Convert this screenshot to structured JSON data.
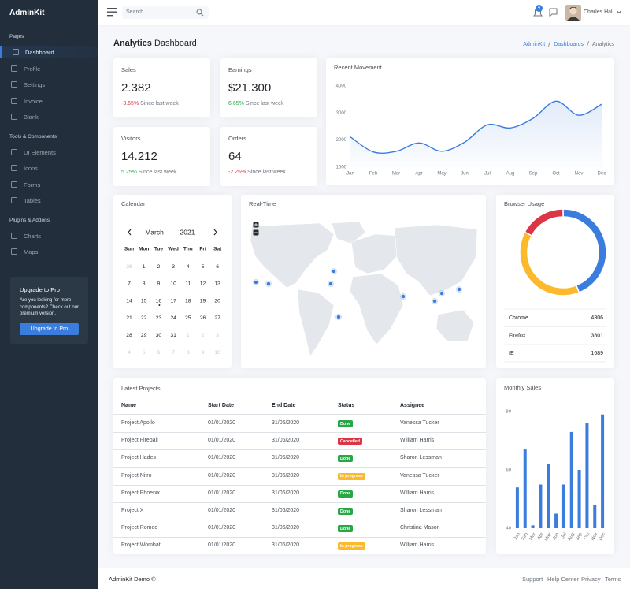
{
  "sidebar": {
    "brand": "AdminKit",
    "sections": [
      {
        "title": "Pages",
        "items": [
          "Dashboard",
          "Profile",
          "Settings",
          "Invoice",
          "Blank"
        ]
      },
      {
        "title": "Tools & Components",
        "items": [
          "UI Elements",
          "Icons",
          "Forms",
          "Tables"
        ]
      },
      {
        "title": "Plugins & Addons",
        "items": [
          "Charts",
          "Maps"
        ]
      }
    ],
    "upgrade": {
      "title": "Upgrade to Pro",
      "text": "Are you looking for more components? Check out our premium version.",
      "button": "Upgrade to Pro"
    }
  },
  "topbar": {
    "search_placeholder": "Search...",
    "notifications": 4,
    "user": "Charles Hall"
  },
  "header": {
    "title_bold": "Analytics",
    "title": "Dashboard",
    "breadcrumb": [
      "AdminKit",
      "Dashboards",
      "Analytics"
    ]
  },
  "stats": [
    {
      "title": "Sales",
      "value": "2.382",
      "change": "-3.65%",
      "note": "Since last week",
      "color": "#dc3545"
    },
    {
      "title": "Earnings",
      "value": "$21.300",
      "change": "6.65%",
      "note": "Since last week",
      "color": "#28a745"
    },
    {
      "title": "Visitors",
      "value": "14.212",
      "change": "5.25%",
      "note": "Since last week",
      "color": "#28a745"
    },
    {
      "title": "Orders",
      "value": "64",
      "change": "-2.25%",
      "note": "Since last week",
      "color": "#dc3545"
    }
  ],
  "calendar": {
    "title": "Calendar",
    "month": "March",
    "year": "2021",
    "weekdays": [
      "Sun",
      "Mon",
      "Tue",
      "Wed",
      "Thu",
      "Fri",
      "Sat"
    ],
    "weeks": [
      [
        28,
        1,
        2,
        3,
        4,
        5,
        6
      ],
      [
        7,
        8,
        9,
        10,
        11,
        12,
        13
      ],
      [
        14,
        15,
        16,
        17,
        18,
        19,
        20
      ],
      [
        21,
        22,
        23,
        24,
        25,
        26,
        27
      ],
      [
        28,
        29,
        30,
        31,
        1,
        2,
        3
      ],
      [
        4,
        5,
        6,
        7,
        8,
        9,
        10
      ]
    ]
  },
  "map": {
    "title": "Real-Time"
  },
  "projects": {
    "title": "Latest Projects",
    "columns": [
      "Name",
      "Start Date",
      "End Date",
      "Status",
      "Assignee"
    ],
    "rows": [
      {
        "name": "Project Apollo",
        "start": "01/01/2020",
        "end": "31/06/2020",
        "status": {
          "label": "Done",
          "color": "#28a745"
        },
        "assignee": "Vanessa Tucker"
      },
      {
        "name": "Project Fireball",
        "start": "01/01/2020",
        "end": "31/06/2020",
        "status": {
          "label": "Cancelled",
          "color": "#dc3545"
        },
        "assignee": "William Harris"
      },
      {
        "name": "Project Hades",
        "start": "01/01/2020",
        "end": "31/06/2020",
        "status": {
          "label": "Done",
          "color": "#28a745"
        },
        "assignee": "Sharon Lessman"
      },
      {
        "name": "Project Nitro",
        "start": "01/01/2020",
        "end": "31/06/2020",
        "status": {
          "label": "In progress",
          "color": "#fcb92c"
        },
        "assignee": "Vanessa Tucker"
      },
      {
        "name": "Project Phoenix",
        "start": "01/01/2020",
        "end": "31/06/2020",
        "status": {
          "label": "Done",
          "color": "#28a745"
        },
        "assignee": "William Harris"
      },
      {
        "name": "Project X",
        "start": "01/01/2020",
        "end": "31/06/2020",
        "status": {
          "label": "Done",
          "color": "#28a745"
        },
        "assignee": "Sharon Lessman"
      },
      {
        "name": "Project Romeo",
        "start": "01/01/2020",
        "end": "31/06/2020",
        "status": {
          "label": "Done",
          "color": "#28a745"
        },
        "assignee": "Christina Mason"
      },
      {
        "name": "Project Wombat",
        "start": "01/01/2020",
        "end": "31/06/2020",
        "status": {
          "label": "In progress",
          "color": "#fcb92c"
        },
        "assignee": "William Harris"
      }
    ]
  },
  "chart_data": [
    {
      "type": "line",
      "title": "Recent Movement",
      "categories": [
        "Jan",
        "Feb",
        "Mar",
        "Apr",
        "May",
        "Jun",
        "Jul",
        "Aug",
        "Sep",
        "Oct",
        "Nov",
        "Dec"
      ],
      "values": [
        2115,
        1562,
        1584,
        1892,
        1587,
        1923,
        2566,
        2448,
        2805,
        3438,
        2917,
        3327
      ],
      "color": "#3b7ddd",
      "ylim": [
        1000,
        4000
      ],
      "yticks": [
        1000,
        2000,
        3000,
        4000
      ]
    },
    {
      "type": "doughnut",
      "title": "Browser Usage",
      "categories": [
        "Chrome",
        "Firefox",
        "IE"
      ],
      "values": [
        4306,
        3801,
        1689
      ],
      "colors": [
        "#3b7ddd",
        "#fcb92c",
        "#dc3545"
      ]
    },
    {
      "type": "bar",
      "title": "Monthly Sales",
      "categories": [
        "Jan",
        "Feb",
        "Mar",
        "Apr",
        "May",
        "Jun",
        "Jul",
        "Aug",
        "Sep",
        "Oct",
        "Nov",
        "Dec"
      ],
      "values": [
        54,
        67,
        41,
        55,
        62,
        45,
        55,
        73,
        60,
        76,
        48,
        79
      ],
      "color": "#3b7ddd",
      "ylim": [
        40,
        80
      ],
      "yticks": [
        40,
        60,
        80
      ]
    }
  ],
  "footer": {
    "brand": "AdminKit Demo ©",
    "links": [
      "Support",
      "Help Center",
      "Privacy",
      "Terms"
    ]
  }
}
